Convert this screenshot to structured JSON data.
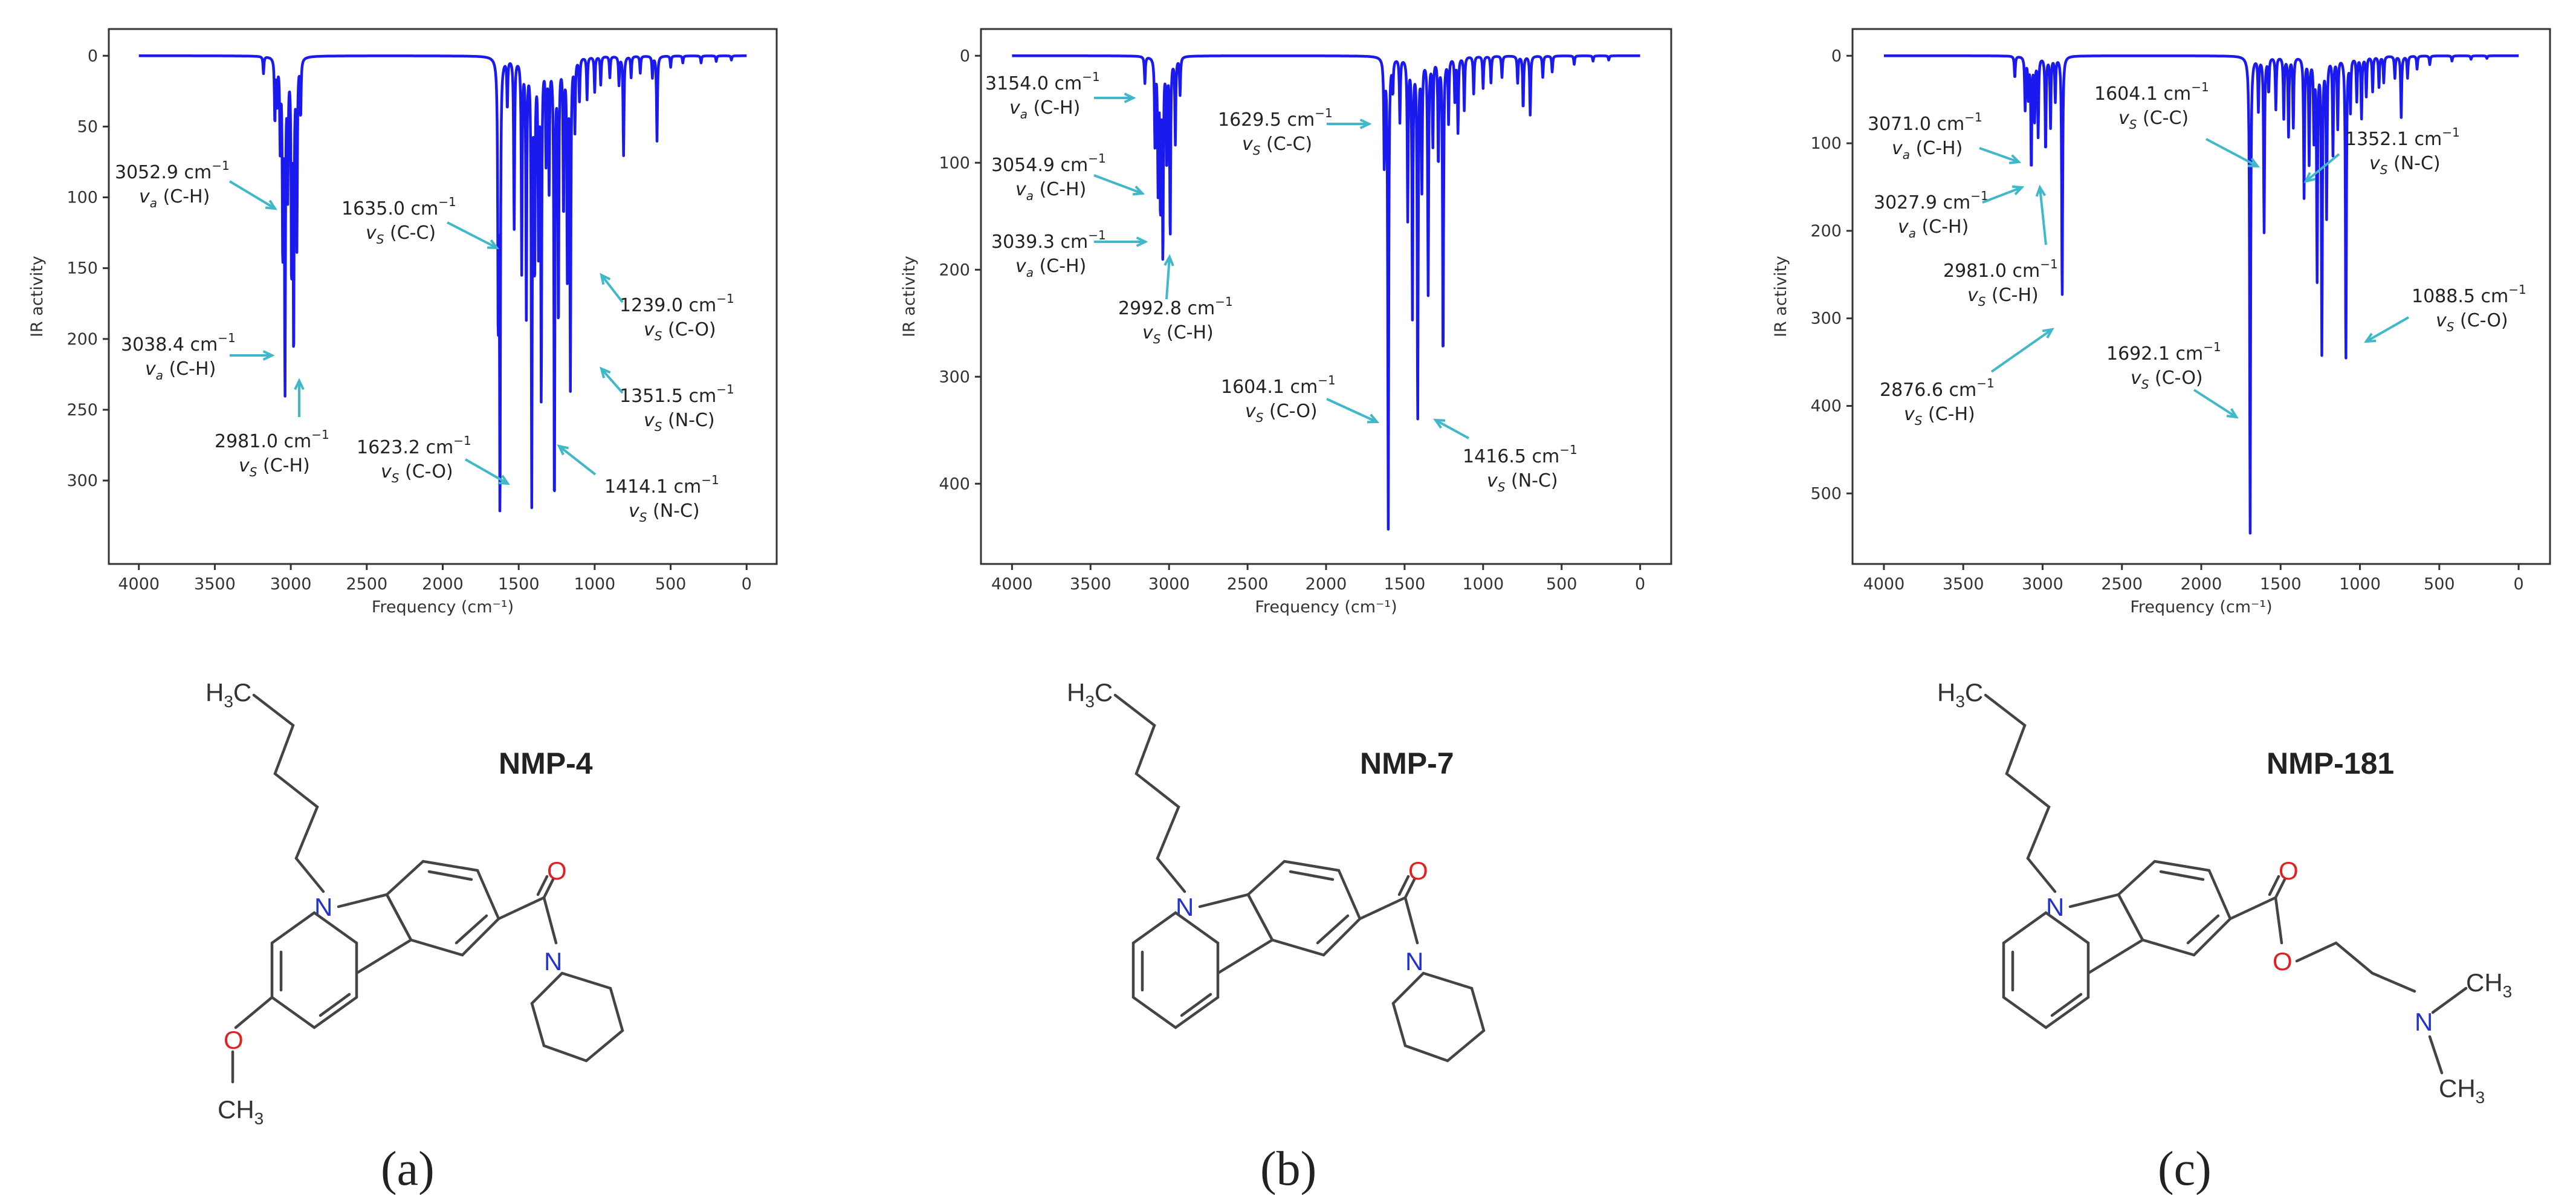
{
  "chart_data": [
    {
      "type": "line",
      "panel_label": "(a)",
      "molecule": "NMP-4",
      "xlabel": "Frequency (cm⁻¹)",
      "ylabel": "IR activity",
      "xlim": [
        4000,
        0
      ],
      "ylim": [
        0,
        340
      ],
      "x_ticks": [
        4000,
        3500,
        3000,
        2500,
        2000,
        1500,
        1000,
        500,
        0
      ],
      "y_ticks": [
        0,
        50,
        100,
        150,
        200,
        250,
        300
      ],
      "series": [
        {
          "peaks": [
            {
              "x": 3180,
              "y": 12
            },
            {
              "x": 3105,
              "y": 45
            },
            {
              "x": 3090,
              "y": 30
            },
            {
              "x": 3070,
              "y": 60
            },
            {
              "x": 3052.9,
              "y": 135
            },
            {
              "x": 3038.4,
              "y": 230
            },
            {
              "x": 3020,
              "y": 90
            },
            {
              "x": 2995,
              "y": 150
            },
            {
              "x": 2981.0,
              "y": 205
            },
            {
              "x": 2960,
              "y": 130
            },
            {
              "x": 2935,
              "y": 40
            },
            {
              "x": 1635.0,
              "y": 180
            },
            {
              "x": 1623.2,
              "y": 320
            },
            {
              "x": 1575,
              "y": 35
            },
            {
              "x": 1530,
              "y": 120
            },
            {
              "x": 1480,
              "y": 150
            },
            {
              "x": 1450,
              "y": 180
            },
            {
              "x": 1414.1,
              "y": 310
            },
            {
              "x": 1395,
              "y": 150
            },
            {
              "x": 1370,
              "y": 130
            },
            {
              "x": 1351.5,
              "y": 240
            },
            {
              "x": 1320,
              "y": 70
            },
            {
              "x": 1300,
              "y": 90
            },
            {
              "x": 1265,
              "y": 325
            },
            {
              "x": 1239.0,
              "y": 190
            },
            {
              "x": 1205,
              "y": 110
            },
            {
              "x": 1180,
              "y": 150
            },
            {
              "x": 1160,
              "y": 230
            },
            {
              "x": 1130,
              "y": 50
            },
            {
              "x": 1100,
              "y": 30
            },
            {
              "x": 1050,
              "y": 30
            },
            {
              "x": 1000,
              "y": 25
            },
            {
              "x": 960,
              "y": 20
            },
            {
              "x": 900,
              "y": 15
            },
            {
              "x": 840,
              "y": 20
            },
            {
              "x": 810,
              "y": 70
            },
            {
              "x": 760,
              "y": 15
            },
            {
              "x": 700,
              "y": 12
            },
            {
              "x": 620,
              "y": 15
            },
            {
              "x": 590,
              "y": 60
            },
            {
              "x": 500,
              "y": 8
            },
            {
              "x": 420,
              "y": 5
            },
            {
              "x": 300,
              "y": 5
            },
            {
              "x": 200,
              "y": 4
            },
            {
              "x": 100,
              "y": 3
            }
          ]
        }
      ],
      "annotations": [
        {
          "value": "3052.9 cm",
          "mode": "a",
          "group": "(C-H)"
        },
        {
          "value": "3038.4 cm",
          "mode": "a",
          "group": "(C-H)"
        },
        {
          "value": "2981.0 cm",
          "mode": "S",
          "group": "(C-H)"
        },
        {
          "value": "1635.0 cm",
          "mode": "S",
          "group": "(C-C)"
        },
        {
          "value": "1623.2 cm",
          "mode": "S",
          "group": "(C-O)"
        },
        {
          "value": "1239.0 cm",
          "mode": "S",
          "group": "(C-O)"
        },
        {
          "value": "1351.5 cm",
          "mode": "S",
          "group": "(N-C)"
        },
        {
          "value": "1414.1 cm",
          "mode": "S",
          "group": "(N-C)"
        }
      ]
    },
    {
      "type": "line",
      "panel_label": "(b)",
      "molecule": "NMP-7",
      "xlabel": "Frequency (cm⁻¹)",
      "ylabel": "IR activity",
      "xlim": [
        4000,
        0
      ],
      "ylim": [
        0,
        450
      ],
      "x_ticks": [
        4000,
        3500,
        3000,
        2500,
        2000,
        1500,
        1000,
        500,
        0
      ],
      "y_ticks": [
        0,
        100,
        200,
        300,
        400
      ],
      "series": [
        {
          "peaks": [
            {
              "x": 3154.0,
              "y": 25
            },
            {
              "x": 3090,
              "y": 80
            },
            {
              "x": 3070,
              "y": 120
            },
            {
              "x": 3054.9,
              "y": 140
            },
            {
              "x": 3039.3,
              "y": 185
            },
            {
              "x": 3015,
              "y": 100
            },
            {
              "x": 2992.8,
              "y": 170
            },
            {
              "x": 2960,
              "y": 80
            },
            {
              "x": 2930,
              "y": 35
            },
            {
              "x": 1629.5,
              "y": 100
            },
            {
              "x": 1604.1,
              "y": 440
            },
            {
              "x": 1575,
              "y": 30
            },
            {
              "x": 1530,
              "y": 60
            },
            {
              "x": 1480,
              "y": 150
            },
            {
              "x": 1450,
              "y": 240
            },
            {
              "x": 1416.5,
              "y": 340
            },
            {
              "x": 1390,
              "y": 120
            },
            {
              "x": 1350,
              "y": 220
            },
            {
              "x": 1320,
              "y": 80
            },
            {
              "x": 1285,
              "y": 100
            },
            {
              "x": 1255,
              "y": 290
            },
            {
              "x": 1220,
              "y": 60
            },
            {
              "x": 1180,
              "y": 40
            },
            {
              "x": 1160,
              "y": 70
            },
            {
              "x": 1120,
              "y": 50
            },
            {
              "x": 1060,
              "y": 35
            },
            {
              "x": 1000,
              "y": 30
            },
            {
              "x": 950,
              "y": 25
            },
            {
              "x": 880,
              "y": 20
            },
            {
              "x": 780,
              "y": 25
            },
            {
              "x": 745,
              "y": 50
            },
            {
              "x": 700,
              "y": 55
            },
            {
              "x": 620,
              "y": 20
            },
            {
              "x": 560,
              "y": 15
            },
            {
              "x": 420,
              "y": 8
            },
            {
              "x": 300,
              "y": 5
            },
            {
              "x": 200,
              "y": 4
            }
          ]
        }
      ],
      "annotations": [
        {
          "value": "3154.0 cm",
          "mode": "a",
          "group": "(C-H)"
        },
        {
          "value": "3054.9 cm",
          "mode": "a",
          "group": "(C-H)"
        },
        {
          "value": "3039.3 cm",
          "mode": "a",
          "group": "(C-H)"
        },
        {
          "value": "2992.8 cm",
          "mode": "S",
          "group": "(C-H)"
        },
        {
          "value": "1629.5 cm",
          "mode": "S",
          "group": "(C-C)"
        },
        {
          "value": "1604.1 cm",
          "mode": "S",
          "group": "(C-O)"
        },
        {
          "value": "1416.5 cm",
          "mode": "S",
          "group": "(N-C)"
        }
      ]
    },
    {
      "type": "line",
      "panel_label": "(c)",
      "molecule": "NMP-181",
      "xlabel": "Frequency (cm⁻¹)",
      "ylabel": "IR activity",
      "xlim": [
        4000,
        0
      ],
      "ylim": [
        0,
        550
      ],
      "x_ticks": [
        4000,
        3500,
        3000,
        2500,
        2000,
        1500,
        1000,
        500,
        0
      ],
      "y_ticks": [
        0,
        100,
        200,
        300,
        400,
        500
      ],
      "series": [
        {
          "peaks": [
            {
              "x": 3175,
              "y": 25
            },
            {
              "x": 3110,
              "y": 60
            },
            {
              "x": 3090,
              "y": 45
            },
            {
              "x": 3071.0,
              "y": 130
            },
            {
              "x": 3050,
              "y": 70
            },
            {
              "x": 3027.9,
              "y": 90
            },
            {
              "x": 2981.0,
              "y": 110
            },
            {
              "x": 2950,
              "y": 80
            },
            {
              "x": 2920,
              "y": 50
            },
            {
              "x": 2876.6,
              "y": 280
            },
            {
              "x": 1692.1,
              "y": 545
            },
            {
              "x": 1640,
              "y": 60
            },
            {
              "x": 1604.1,
              "y": 200
            },
            {
              "x": 1575,
              "y": 40
            },
            {
              "x": 1530,
              "y": 60
            },
            {
              "x": 1480,
              "y": 70
            },
            {
              "x": 1450,
              "y": 90
            },
            {
              "x": 1420,
              "y": 80
            },
            {
              "x": 1352.1,
              "y": 160
            },
            {
              "x": 1320,
              "y": 120
            },
            {
              "x": 1290,
              "y": 90
            },
            {
              "x": 1270,
              "y": 250
            },
            {
              "x": 1240,
              "y": 335
            },
            {
              "x": 1210,
              "y": 180
            },
            {
              "x": 1170,
              "y": 110
            },
            {
              "x": 1140,
              "y": 80
            },
            {
              "x": 1088.5,
              "y": 350
            },
            {
              "x": 1060,
              "y": 60
            },
            {
              "x": 1020,
              "y": 50
            },
            {
              "x": 990,
              "y": 70
            },
            {
              "x": 960,
              "y": 45
            },
            {
              "x": 920,
              "y": 40
            },
            {
              "x": 880,
              "y": 35
            },
            {
              "x": 850,
              "y": 30
            },
            {
              "x": 780,
              "y": 25
            },
            {
              "x": 740,
              "y": 70
            },
            {
              "x": 700,
              "y": 25
            },
            {
              "x": 640,
              "y": 15
            },
            {
              "x": 560,
              "y": 10
            },
            {
              "x": 420,
              "y": 6
            },
            {
              "x": 300,
              "y": 4
            },
            {
              "x": 200,
              "y": 3
            }
          ]
        }
      ],
      "annotations": [
        {
          "value": "3071.0 cm",
          "mode": "a",
          "group": "(C-H)"
        },
        {
          "value": "3027.9 cm",
          "mode": "a",
          "group": "(C-H)"
        },
        {
          "value": "2981.0 cm",
          "mode": "S",
          "group": "(C-H)"
        },
        {
          "value": "2876.6 cm",
          "mode": "S",
          "group": "(C-H)"
        },
        {
          "value": "1604.1 cm",
          "mode": "S",
          "group": "(C-C)"
        },
        {
          "value": "1352.1 cm",
          "mode": "S",
          "group": "(N-C)"
        },
        {
          "value": "1088.5 cm",
          "mode": "S",
          "group": "(C-O)"
        },
        {
          "value": "1692.1 cm",
          "mode": "S",
          "group": "(C-O)"
        }
      ]
    }
  ],
  "structures": {
    "atoms": {
      "methyl": "H",
      "methyl_c": "C",
      "methyl_sub": "3",
      "nitrogen": "N",
      "oxygen": "O",
      "ch3": "CH",
      "ch3_sub": "3"
    }
  },
  "labels": {
    "annotation_unit_sup": "−1",
    "annotation_nu": "v"
  },
  "colors": {
    "spectrum": "#1a1aee",
    "arrow": "#3fb8c9",
    "nitrogen": "#2233cc",
    "oxygen": "#dd2222"
  }
}
